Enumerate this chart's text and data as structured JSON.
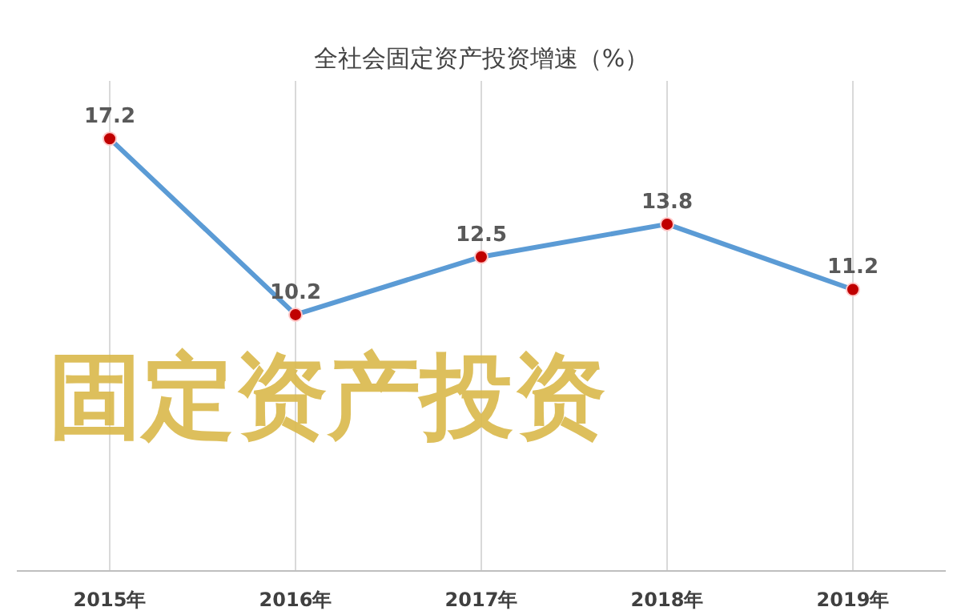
{
  "chart_data": {
    "type": "line",
    "title": "全社会固定资产投资增速（%）",
    "categories": [
      "2015年",
      "2016年",
      "2017年",
      "2018年",
      "2019年"
    ],
    "series": [
      {
        "color": "#5b9bd5",
        "values": [
          17.2,
          10.2,
          12.5,
          13.8,
          11.2
        ]
      }
    ],
    "ylim": [
      0,
      19.5
    ],
    "tick_labels": "x",
    "data_labels": true,
    "grid": "x",
    "marker": "circle",
    "line_style": "solid",
    "annotations": [
      "固定资产投资"
    ]
  }
}
